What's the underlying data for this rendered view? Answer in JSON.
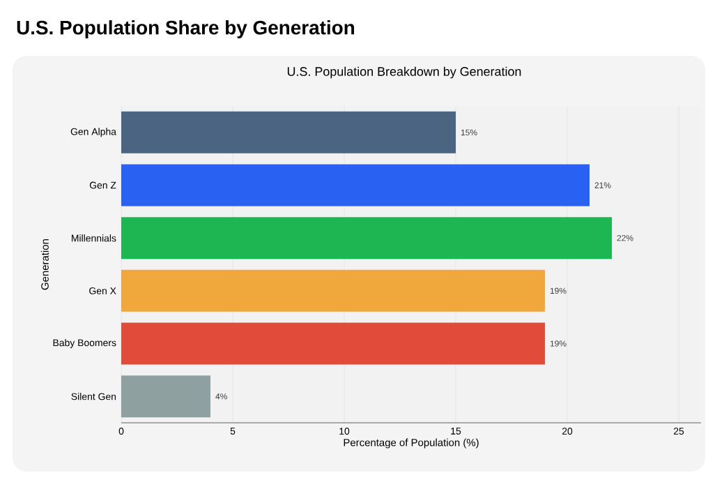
{
  "chart_data": {
    "type": "bar",
    "orientation": "horizontal",
    "title": "U.S. Population Share by Generation",
    "subtitle": "U.S. Population Breakdown by Generation",
    "xlabel": "Percentage of Population (%)",
    "ylabel": "Generation",
    "categories": [
      "Gen Alpha",
      "Gen Z",
      "Millennials",
      "Gen X",
      "Baby Boomers",
      "Silent Gen"
    ],
    "values": [
      15,
      21,
      22,
      19,
      19,
      4
    ],
    "value_labels": [
      "15%",
      "21%",
      "22%",
      "19%",
      "19%",
      "4%"
    ],
    "colors": [
      "#4a6482",
      "#2962f2",
      "#1eb553",
      "#f0a83c",
      "#e04b3a",
      "#8fa0a0"
    ],
    "xlim": [
      0,
      26
    ],
    "xticks": [
      0,
      5,
      10,
      15,
      20,
      25
    ],
    "grid": "x"
  }
}
